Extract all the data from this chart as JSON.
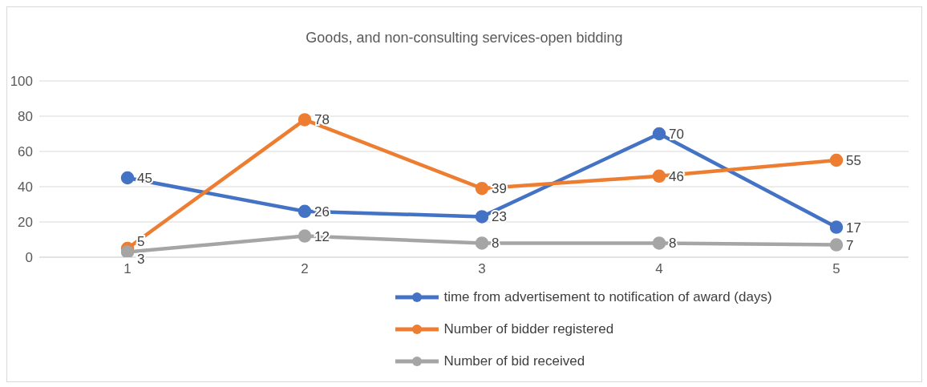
{
  "chart_data": {
    "type": "line",
    "title": "Goods, and non-consulting services-open bidding",
    "categories": [
      "1",
      "2",
      "3",
      "4",
      "5"
    ],
    "series": [
      {
        "name": "time from advertisement to notification of award (days)",
        "color": "#4472c4",
        "values": [
          45,
          26,
          23,
          70,
          17
        ]
      },
      {
        "name": "Number of bidder registered",
        "color": "#ed7d31",
        "values": [
          5,
          78,
          39,
          46,
          55
        ]
      },
      {
        "name": "Number of bid received",
        "color": "#a5a5a5",
        "values": [
          3,
          12,
          8,
          8,
          7
        ]
      }
    ],
    "ylim": [
      0,
      100
    ],
    "yticks": [
      0,
      20,
      40,
      60,
      80,
      100
    ],
    "grid": "y",
    "legend": "bottom",
    "marker": "circle",
    "line_style": "solid",
    "data_labels": true
  }
}
